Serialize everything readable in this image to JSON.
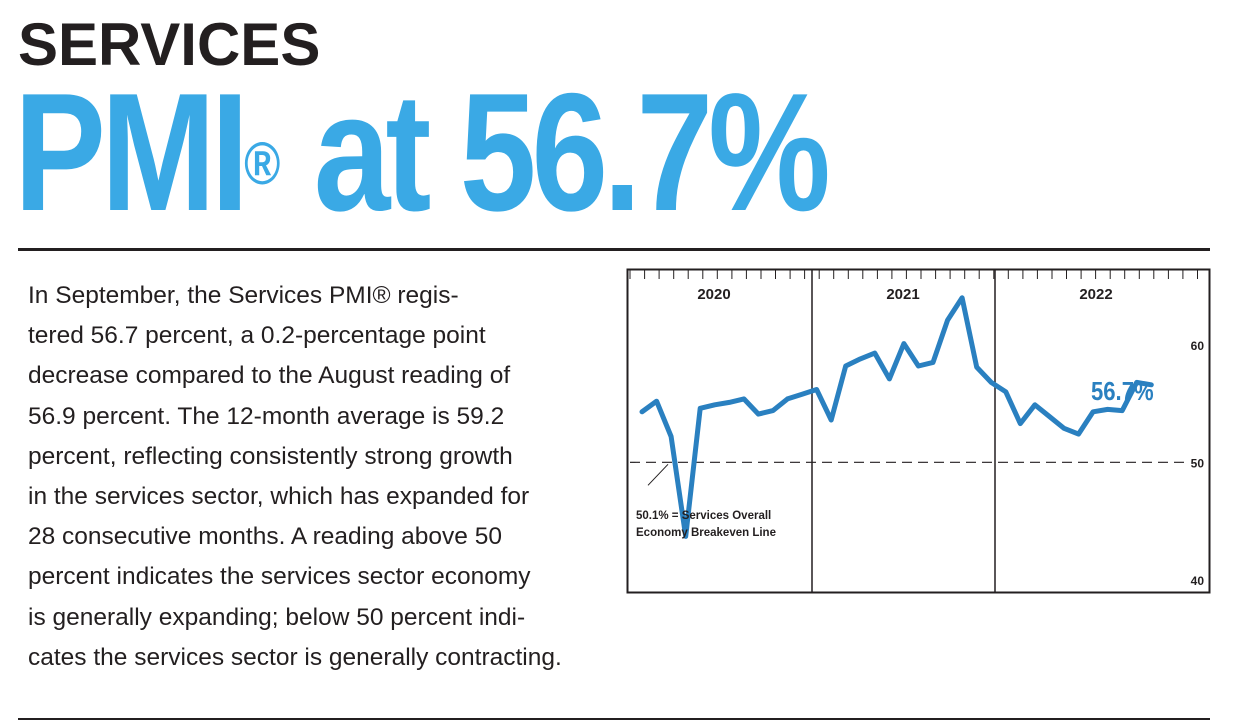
{
  "header": {
    "kicker": "SERVICES",
    "headline_main": "PMI",
    "headline_mark": "®",
    "headline_tail": " at 56.7%"
  },
  "body": {
    "lines": [
      "In September, the Services PMI® regis-",
      "tered 56.7 percent, a 0.2-percentage point",
      "decrease compared to the August reading of",
      "56.9 percent. The 12-month average is 59.2",
      "percent, reflecting consistently strong growth",
      "in the services sector, which has expanded for",
      "28 consecutive months. A reading above 50",
      "percent indicates the services sector economy",
      "is generally expanding; below 50 percent indi-",
      "cates the services sector is generally contracting."
    ]
  },
  "colors": {
    "accent": "#3aa9e5",
    "line": "#2a80c0",
    "ink": "#231f20"
  },
  "chart_data": {
    "type": "line",
    "title": "",
    "xlabel": "",
    "ylabel": "",
    "year_labels": [
      "2020",
      "2021",
      "2022"
    ],
    "ytick_labels": [
      "60",
      "50",
      "40"
    ],
    "yticks": [
      60,
      50,
      40
    ],
    "ylim": [
      40,
      64
    ],
    "grid": false,
    "series": [
      {
        "name": "",
        "x": [
          "2019-10",
          "2019-11",
          "2019-12",
          "2020-01",
          "2020-02",
          "2020-03",
          "2020-04",
          "2020-05",
          "2020-06",
          "2020-07",
          "2020-08",
          "2020-09",
          "2020-10",
          "2020-11",
          "2020-12",
          "2021-01",
          "2021-02",
          "2021-03",
          "2021-04",
          "2021-05",
          "2021-06",
          "2021-07",
          "2021-08",
          "2021-09",
          "2021-10",
          "2021-11",
          "2021-12",
          "2022-01",
          "2022-02",
          "2022-03",
          "2022-04",
          "2022-05",
          "2022-06",
          "2022-07",
          "2022-08",
          "2022-09"
        ],
        "values": [
          54.4,
          55.3,
          52.3,
          43.8,
          54.7,
          55.0,
          55.2,
          55.5,
          54.2,
          54.5,
          55.5,
          55.9,
          56.3,
          53.7,
          58.3,
          58.9,
          59.4,
          57.2,
          60.2,
          58.3,
          58.6,
          62.2,
          64.1,
          58.2,
          56.9,
          56.1,
          53.4,
          55.0,
          54.0,
          53.0,
          52.5,
          54.4,
          54.6,
          54.5,
          56.9,
          56.7
        ]
      }
    ],
    "callout_value": "56.7%",
    "reference_line": {
      "value": 50.1,
      "label_line1": "50.1% = Services Overall",
      "label_line2": "Economy Breakeven Line"
    }
  }
}
